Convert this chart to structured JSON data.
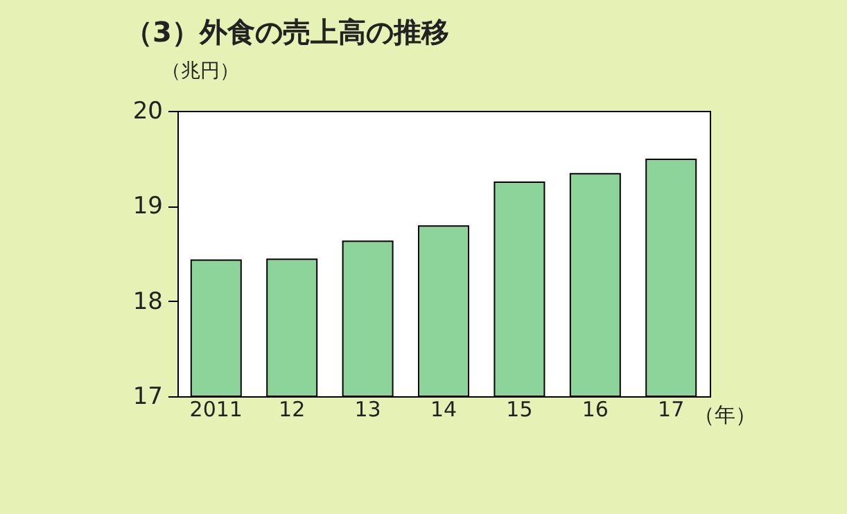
{
  "chart_data": {
    "type": "bar",
    "title": "（3）外食の売上高の推移",
    "ylabel": "（兆円）",
    "xlabel": "（年）",
    "categories": [
      "2011",
      "12",
      "13",
      "14",
      "15",
      "16",
      "17"
    ],
    "values": [
      18.43,
      18.44,
      18.63,
      18.79,
      19.25,
      19.34,
      19.49
    ],
    "color": "#8dd49a",
    "ylim": [
      17,
      20
    ],
    "yticks": [
      17,
      18,
      19,
      20
    ],
    "grid": false
  }
}
